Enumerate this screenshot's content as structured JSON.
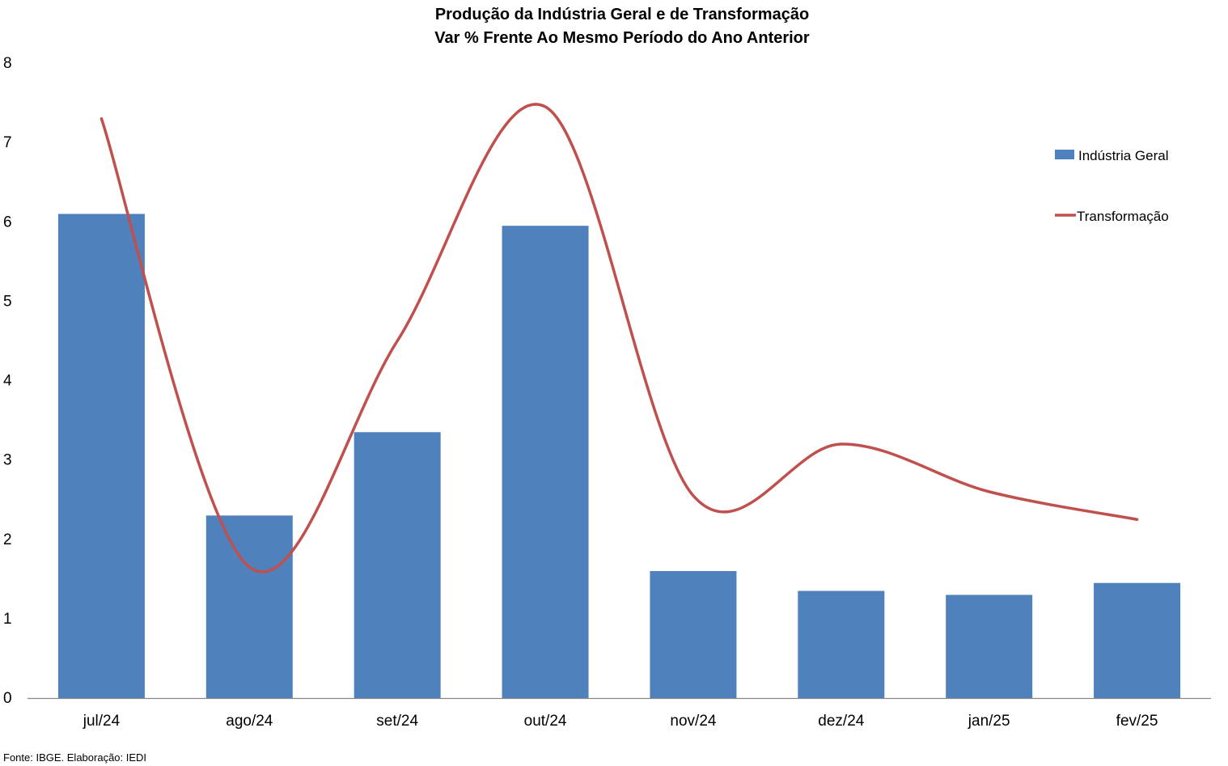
{
  "chart_data": {
    "type": "bar",
    "title": "Produção da Indústria Geral e de Transformação",
    "subtitle": "Var % Frente Ao Mesmo Período do Ano Anterior",
    "categories": [
      "jul/24",
      "ago/24",
      "set/24",
      "out/24",
      "nov/24",
      "dez/24",
      "jan/25",
      "fev/25"
    ],
    "series": [
      {
        "name": "Indústria Geral",
        "type": "bar",
        "color": "#4F81BD",
        "values": [
          6.1,
          2.3,
          3.35,
          5.95,
          1.6,
          1.35,
          1.3,
          1.45
        ]
      },
      {
        "name": "Transformação",
        "type": "line",
        "smooth": true,
        "color": "#C0504D",
        "values": [
          7.3,
          1.65,
          4.5,
          7.45,
          2.55,
          3.2,
          2.6,
          2.25
        ]
      }
    ],
    "ylim": [
      0,
      8
    ],
    "yticks": [
      "0",
      "1",
      "2",
      "3",
      "4",
      "5",
      "6",
      "7",
      "8"
    ],
    "grid": false,
    "legend_position": "right",
    "source": "Fonte: IBGE. Elaboração: IEDI"
  }
}
